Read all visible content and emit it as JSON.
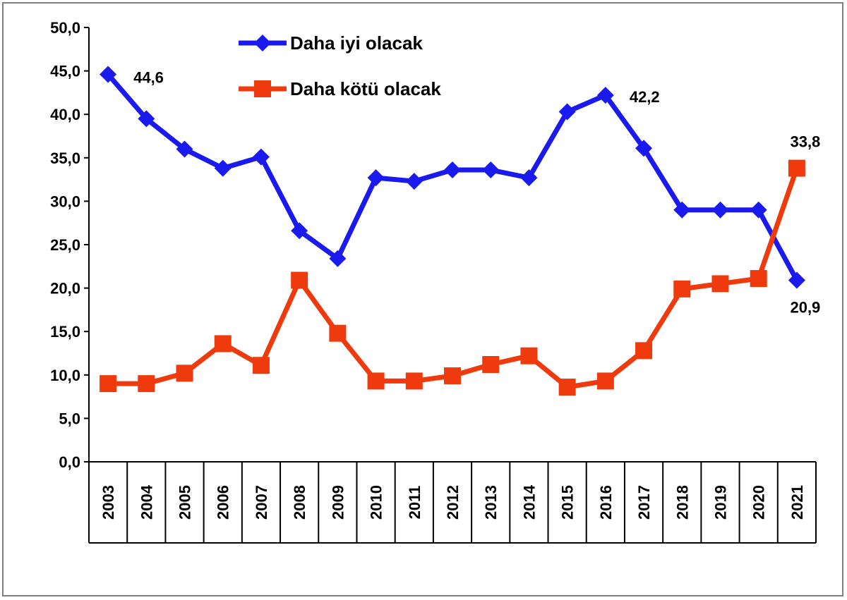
{
  "chart_data": {
    "type": "line",
    "title": "",
    "xlabel": "",
    "ylabel": "",
    "ylim": [
      0,
      50
    ],
    "y_ticks": [
      "0,0",
      "5,0",
      "10,0",
      "15,0",
      "20,0",
      "25,0",
      "30,0",
      "35,0",
      "40,0",
      "45,0",
      "50,0"
    ],
    "categories": [
      "2003",
      "2004",
      "2005",
      "2006",
      "2007",
      "2008",
      "2009",
      "2010",
      "2011",
      "2012",
      "2013",
      "2014",
      "2015",
      "2016",
      "2017",
      "2018",
      "2019",
      "2020",
      "2021"
    ],
    "series": [
      {
        "name": "Daha iyi olacak",
        "color": "#1a1aee",
        "marker": "diamond",
        "values": [
          44.6,
          39.5,
          36.0,
          33.8,
          35.1,
          26.6,
          23.4,
          32.7,
          32.3,
          33.6,
          33.6,
          32.7,
          40.3,
          42.2,
          36.1,
          29.0,
          29.0,
          29.0,
          20.9
        ]
      },
      {
        "name": "Daha kötü olacak",
        "color": "#ee3a0c",
        "marker": "square",
        "values": [
          9.0,
          9.0,
          10.2,
          13.6,
          11.1,
          20.9,
          14.8,
          9.3,
          9.3,
          9.9,
          11.2,
          12.2,
          8.6,
          9.3,
          12.8,
          19.9,
          20.5,
          21.1,
          33.8
        ]
      }
    ],
    "data_labels": [
      {
        "series": 0,
        "index": 0,
        "text": "44,6"
      },
      {
        "series": 0,
        "index": 13,
        "text": "42,2"
      },
      {
        "series": 0,
        "index": 18,
        "text": "20,9"
      },
      {
        "series": 1,
        "index": 18,
        "text": "33,8"
      }
    ],
    "legend_position": "top-left",
    "grid": false
  }
}
